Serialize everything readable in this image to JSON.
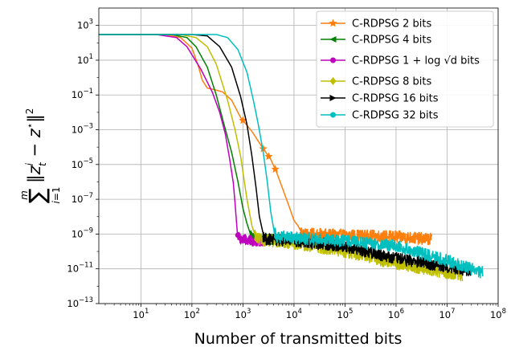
{
  "chart_data": {
    "type": "line",
    "title": "",
    "xlabel": "Number of transmitted bits",
    "ylabel": "sum_{i=1}^{m} ||z_t^i - z*||^2",
    "xscale": "log",
    "yscale": "log",
    "xlim": [
      1.5,
      100000000
    ],
    "ylim": [
      1e-13,
      10000
    ],
    "grid": true,
    "legend_position": "top-right",
    "x_ticks": [
      {
        "value": 10,
        "base": "10",
        "exp": "1"
      },
      {
        "value": 100,
        "base": "10",
        "exp": "2"
      },
      {
        "value": 1000,
        "base": "10",
        "exp": "3"
      },
      {
        "value": 10000,
        "base": "10",
        "exp": "4"
      },
      {
        "value": 100000,
        "base": "10",
        "exp": "5"
      },
      {
        "value": 1000000,
        "base": "10",
        "exp": "6"
      },
      {
        "value": 10000000,
        "base": "10",
        "exp": "7"
      },
      {
        "value": 100000000,
        "base": "10",
        "exp": "8"
      }
    ],
    "y_ticks": [
      {
        "value": 1000,
        "base": "10",
        "exp": "3"
      },
      {
        "value": 10,
        "base": "10",
        "exp": "1"
      },
      {
        "value": 0.1,
        "base": "10",
        "exp": "−1"
      },
      {
        "value": 0.001,
        "base": "10",
        "exp": "−3"
      },
      {
        "value": 1e-05,
        "base": "10",
        "exp": "−5"
      },
      {
        "value": 1e-07,
        "base": "10",
        "exp": "−7"
      },
      {
        "value": 1e-09,
        "base": "10",
        "exp": "−9"
      },
      {
        "value": 1e-11,
        "base": "10",
        "exp": "−11"
      },
      {
        "value": 1e-13,
        "base": "10",
        "exp": "−13"
      }
    ],
    "series": [
      {
        "name": "C-RDPSG 2 bits",
        "legend_text": "C-RDPSG 2 bits",
        "color": "#ff7f0e",
        "marker": "star",
        "noise_amplitude": 0.35,
        "markers_at": [
          1000,
          2500,
          3200,
          4300
        ],
        "x": [
          1.5,
          30,
          60,
          100,
          130,
          160,
          200,
          280,
          400,
          600,
          900,
          1500,
          2500,
          3500,
          4500,
          6000,
          8000,
          10000,
          12000,
          13500,
          16000,
          50000,
          200000,
          1000000,
          5000000
        ],
        "y": [
          300,
          300,
          200,
          50,
          6,
          0.7,
          0.25,
          0.2,
          0.15,
          0.05,
          0.005,
          0.0008,
          8e-05,
          2e-05,
          4e-06,
          4e-07,
          4e-08,
          6e-09,
          3e-09,
          1.5e-09,
          1e-09,
          9e-10,
          8e-10,
          7e-10,
          5e-10
        ]
      },
      {
        "name": "C-RDPSG 4 bits",
        "legend_text": "C-RDPSG 4 bits",
        "color": "#008000",
        "marker": "triangle-left",
        "noise_amplitude": 0.3,
        "markers_at": [
          1500
        ],
        "x": [
          1.5,
          40,
          80,
          120,
          200,
          300,
          400,
          600,
          800,
          1000,
          1200,
          1400,
          1500,
          1800,
          3000,
          10000
        ],
        "y": [
          300,
          300,
          200,
          60,
          4,
          0.1,
          0.004,
          5e-05,
          1e-06,
          3e-08,
          4e-09,
          1e-09,
          6e-10,
          5e-10,
          5e-10,
          4e-10
        ]
      },
      {
        "name": "C-RDPSG 1+log√d bits",
        "legend_text": "C-RDPSG 1 + log √d bits",
        "color": "#bf00bf",
        "marker": "circle",
        "noise_amplitude": 0.3,
        "markers_at": [
          800
        ],
        "x": [
          1.5,
          20,
          50,
          80,
          150,
          250,
          350,
          450,
          550,
          650,
          700,
          780,
          850,
          900,
          1500,
          3000
        ],
        "y": [
          300,
          300,
          200,
          60,
          3,
          0.15,
          0.01,
          0.0006,
          2e-05,
          8e-07,
          6e-08,
          1e-09,
          6e-10,
          5e-10,
          4e-10,
          4e-10
        ]
      },
      {
        "name": "C-RDPSG 8 bits",
        "legend_text": "C-RDPSG 8 bits",
        "color": "#bfbf00",
        "marker": "diamond",
        "noise_amplitude": 0.35,
        "markers_at": [
          1900
        ],
        "x": [
          1.5,
          60,
          120,
          200,
          300,
          500,
          700,
          900,
          1200,
          1500,
          1700,
          1900,
          10000,
          100000,
          1000000,
          20000000
        ],
        "y": [
          300,
          300,
          200,
          60,
          6,
          0.05,
          0.001,
          3e-05,
          1e-07,
          3e-09,
          1e-09,
          5e-10,
          3e-10,
          1e-10,
          2e-11,
          4e-12
        ]
      },
      {
        "name": "C-RDPSG 16 bits",
        "legend_text": "C-RDPSG 16 bits",
        "color": "#000000",
        "marker": "triangle-right",
        "noise_amplitude": 0.35,
        "markers_at": [
          2800
        ],
        "x": [
          1.5,
          100,
          200,
          350,
          600,
          900,
          1200,
          1500,
          1800,
          2100,
          2500,
          2800,
          10000,
          100000,
          1000000,
          30000000
        ],
        "y": [
          300,
          300,
          250,
          60,
          4,
          0.08,
          0.002,
          3e-05,
          5e-07,
          1e-08,
          1e-09,
          5e-10,
          4e-10,
          2e-10,
          4e-11,
          8e-12
        ]
      },
      {
        "name": "C-RDPSG 32 bits",
        "legend_text": "C-RDPSG 32 bits",
        "color": "#00bfbf",
        "marker": "circle",
        "noise_amplitude": 0.35,
        "markers_at": [
          4600
        ],
        "x": [
          1.5,
          300,
          500,
          800,
          1200,
          1600,
          2000,
          2500,
          3000,
          3500,
          4000,
          4600,
          10000,
          100000,
          1000000,
          10000000,
          50000000
        ],
        "y": [
          300,
          300,
          200,
          40,
          2,
          0.05,
          0.002,
          5e-05,
          1e-06,
          2e-08,
          2e-09,
          7e-10,
          6e-10,
          4e-10,
          2e-10,
          3e-11,
          6e-12
        ]
      }
    ]
  }
}
